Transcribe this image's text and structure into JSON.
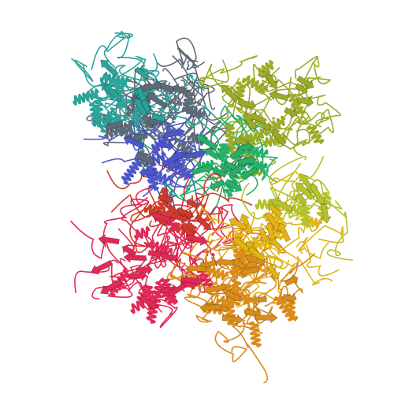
{
  "image": {
    "kind": "protein-ribbon-render",
    "background": "#ffffff"
  },
  "chains": [
    {
      "name": "chain-teal",
      "color": "#2aa39a"
    },
    {
      "name": "chain-gray",
      "color": "#5f6a78"
    },
    {
      "name": "chain-blue",
      "color": "#4b56c9"
    },
    {
      "name": "chain-olive",
      "color": "#9bab26"
    },
    {
      "name": "chain-green",
      "color": "#27b06a"
    },
    {
      "name": "chain-red",
      "color": "#e02a55"
    },
    {
      "name": "chain-orange",
      "color": "#d98c1a"
    },
    {
      "name": "chain-yellow",
      "color": "#e3b414"
    },
    {
      "name": "chain-darkred",
      "color": "#cf3b2a"
    },
    {
      "name": "chain-lime",
      "color": "#b5c22a"
    }
  ]
}
